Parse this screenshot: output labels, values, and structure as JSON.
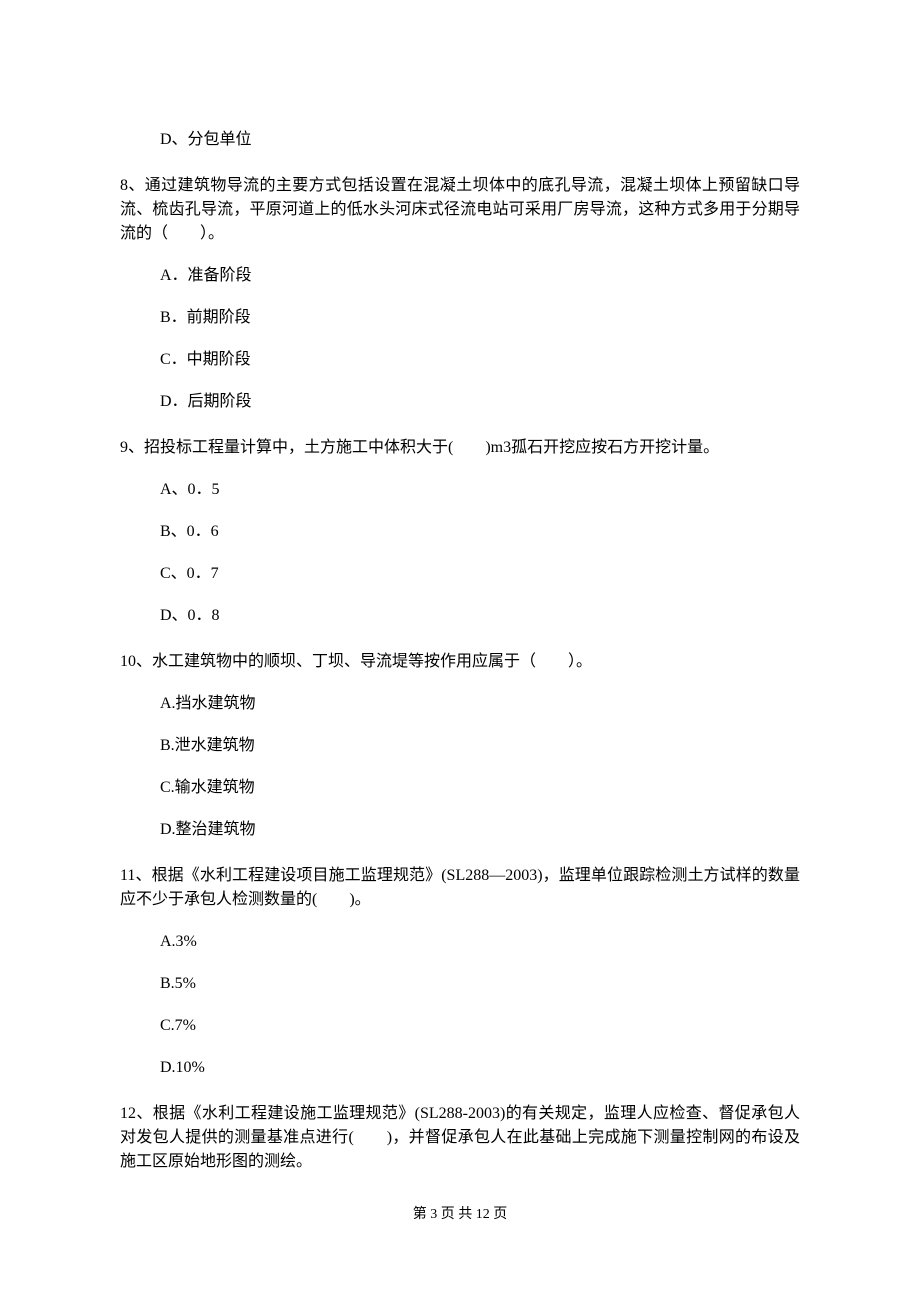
{
  "q7_option_d": "D、分包单位",
  "q8_stem": "8、通过建筑物导流的主要方式包括设置在混凝土坝体中的底孔导流，混凝土坝体上预留缺口导流、梳齿孔导流，平原河道上的低水头河床式径流电站可采用厂房导流，这种方式多用于分期导流的（　　）。",
  "q8_a": "A．准备阶段",
  "q8_b": "B．前期阶段",
  "q8_c": "C．中期阶段",
  "q8_d": "D．后期阶段",
  "q9_stem": "9、招投标工程量计算中，土方施工中体积大于(　　)m3孤石开挖应按石方开挖计量。",
  "q9_a": "A、0．5",
  "q9_b": "B、0．6",
  "q9_c": "C、0．7",
  "q9_d": "D、0．8",
  "q10_stem": "10、水工建筑物中的顺坝、丁坝、导流堤等按作用应属于（　　）。",
  "q10_a": "A.挡水建筑物",
  "q10_b": "B.泄水建筑物",
  "q10_c": "C.输水建筑物",
  "q10_d": "D.整治建筑物",
  "q11_stem": "11、根据《水利工程建设项目施工监理规范》(SL288—2003)，监理单位跟踪检测土方试样的数量应不少于承包人检测数量的(　　)。",
  "q11_a": "A.3%",
  "q11_b": "B.5%",
  "q11_c": "C.7%",
  "q11_d": "D.10%",
  "q12_stem": "12、根据《水利工程建设施工监理规范》(SL288-2003)的有关规定，监理人应检查、督促承包人对发包人提供的测量基准点进行(　　)，并督促承包人在此基础上完成施下测量控制网的布设及施工区原始地形图的测绘。",
  "footer": "第 3 页 共 12 页"
}
